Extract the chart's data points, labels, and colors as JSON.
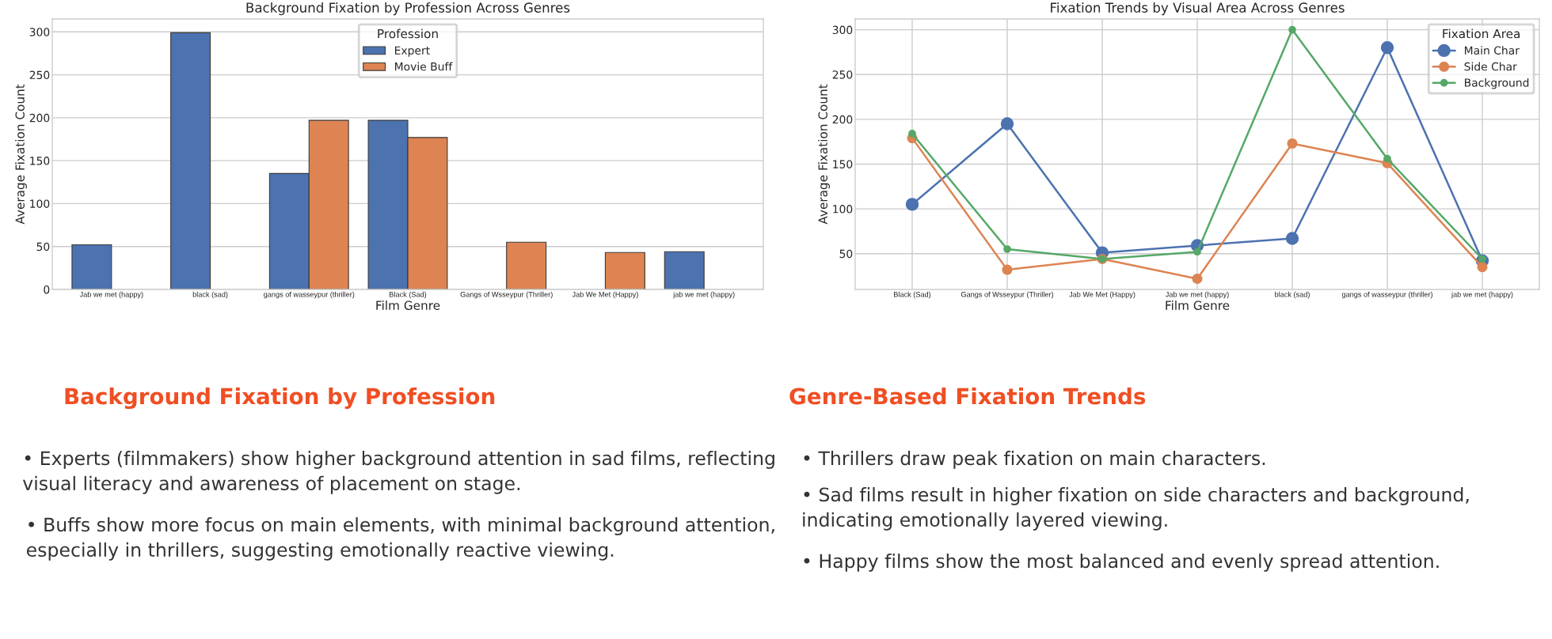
{
  "chart_data": [
    {
      "type": "bar",
      "title": "Background Fixation by Profession Across Genres",
      "xlabel": "Film Genre",
      "ylabel": "Average Fixation Count",
      "legend_title": "Profession",
      "categories": [
        "Jab we met (happy)",
        "black (sad)",
        "gangs of wasseypur (thriller)",
        "Black (Sad)",
        "Gangs of Wsseypur (Thriller)",
        "Jab We Met (Happy)",
        "jab we met (happy)"
      ],
      "series": [
        {
          "name": "Expert",
          "color": "#4c72b0",
          "values": [
            52,
            299,
            135,
            197,
            null,
            null,
            44
          ]
        },
        {
          "name": "Movie Buff",
          "color": "#dd8452",
          "values": [
            null,
            null,
            197,
            177,
            55,
            43,
            null
          ]
        }
      ],
      "ylim": [
        0,
        315
      ],
      "yticks": [
        0,
        50,
        100,
        150,
        200,
        250,
        300
      ],
      "grid": "y",
      "legend": "top",
      "annotations": [
        "Background Fixation by Profession",
        "• Experts (filmmakers) show higher background attention in sad films, reflecting visual literacy and awareness of placement on stage.",
        "• Buffs show more focus on main elements, with minimal background attention, especially in thrillers, suggesting emotionally reactive viewing."
      ]
    },
    {
      "type": "line",
      "title": "Fixation Trends by Visual Area Across Genres",
      "xlabel": "Film Genre",
      "ylabel": "Average Fixation Count",
      "legend_title": "Fixation Area",
      "categories": [
        "Black (Sad)",
        "Gangs of Wsseypur (Thriller)",
        "Jab We Met (Happy)",
        "Jab we met (happy)",
        "black (sad)",
        "gangs of wasseypur (thriller)",
        "jab we met (happy)"
      ],
      "series": [
        {
          "name": "Main Char",
          "color": "#4c72b0",
          "values": [
            105,
            195,
            51,
            59,
            67,
            280,
            42
          ]
        },
        {
          "name": "Side Char",
          "color": "#dd8452",
          "values": [
            179,
            32,
            44,
            22,
            173,
            151,
            35
          ]
        },
        {
          "name": "Background",
          "color": "#55a868",
          "values": [
            184,
            55,
            44,
            52,
            300,
            156,
            44
          ]
        }
      ],
      "ylim": [
        10,
        312
      ],
      "yticks": [
        50,
        100,
        150,
        200,
        250,
        300
      ],
      "grid": true,
      "legend": "top right",
      "marker": "circle",
      "line_style": "solid",
      "annotations": [
        "Genre-Based Fixation Trends",
        "• Thrillers draw peak fixation on main characters.",
        "• Sad films result in higher fixation on side characters and background, indicating emotionally layered viewing.",
        "• Happy films show the most balanced and evenly spread attention."
      ]
    }
  ]
}
